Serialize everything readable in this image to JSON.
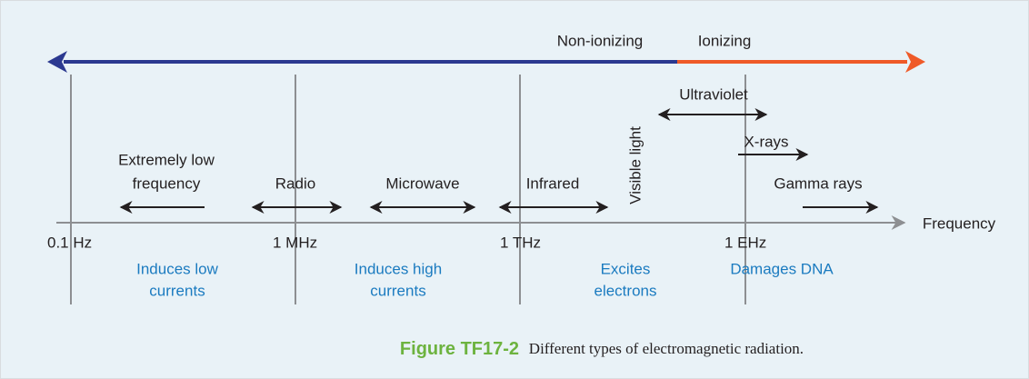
{
  "top_arrow": {
    "left": "Non-ionizing",
    "right": "Ionizing"
  },
  "axis_label": "Frequency",
  "ticks": [
    "0.1 Hz",
    "1 MHz",
    "1 THz",
    "1 EHz"
  ],
  "bands": [
    {
      "label": [
        "Extremely low",
        "frequency"
      ]
    },
    {
      "label": [
        "Radio"
      ]
    },
    {
      "label": [
        "Microwave"
      ]
    },
    {
      "label": [
        "Infrared"
      ]
    },
    {
      "label": [
        "Visible light"
      ]
    },
    {
      "label": [
        "Ultraviolet"
      ]
    },
    {
      "label": [
        "X-rays"
      ]
    },
    {
      "label": [
        "Gamma rays"
      ]
    }
  ],
  "effects": [
    {
      "label": [
        "Induces low",
        "currents"
      ]
    },
    {
      "label": [
        "Induces high",
        "currents"
      ]
    },
    {
      "label": [
        "Excites",
        "electrons"
      ]
    },
    {
      "label": [
        "Damages DNA"
      ]
    }
  ],
  "caption": {
    "label": "Figure TF17-2",
    "text": "Different types of electromagnetic radiation."
  }
}
